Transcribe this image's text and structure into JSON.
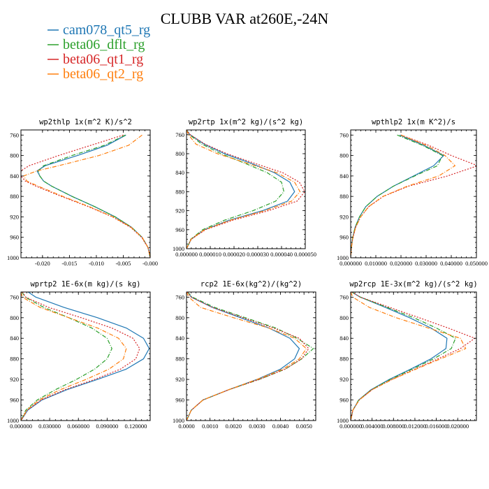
{
  "figure": {
    "title": "CLUBB VAR at260E,-24N",
    "legend": [
      {
        "name": "cam078_qt5_rg",
        "color": "#1f77b4",
        "dash": ""
      },
      {
        "name": "beta06_dflt_rg",
        "color": "#2ca02c",
        "dash": "6,2,1,2"
      },
      {
        "name": "beta06_qt1_rg",
        "color": "#d62728",
        "dash": "2,2"
      },
      {
        "name": "beta06_qt2_rg",
        "color": "#ff7f0e",
        "dash": "6,2,1,2"
      }
    ]
  },
  "chart_data": [
    {
      "type": "line",
      "title": "wp2thlp  1x(m^2 K)/s^2",
      "xlim": [
        -0.024,
        0.0
      ],
      "ylim": [
        1000,
        750
      ],
      "xticks": [
        -0.02,
        -0.015,
        -0.01,
        -0.005,
        0.0
      ],
      "xtick_labels": [
        "-0.020",
        "-0.015",
        "-0.010",
        "-0.005",
        "-0.000"
      ],
      "yticks": [
        760,
        800,
        840,
        880,
        920,
        960,
        1000
      ],
      "series": [
        {
          "name": "cam078_qt5_rg",
          "y": [
            760,
            780,
            800,
            820,
            830,
            840,
            850,
            860,
            880,
            900,
            920,
            940,
            960,
            980,
            1000
          ],
          "x": [
            -0.0045,
            -0.008,
            -0.0135,
            -0.0195,
            -0.021,
            -0.0205,
            -0.0198,
            -0.0183,
            -0.0145,
            -0.0103,
            -0.0065,
            -0.0035,
            -0.0015,
            -0.0004,
            0.0
          ]
        },
        {
          "name": "beta06_dflt_rg",
          "y": [
            760,
            780,
            800,
            820,
            830,
            840,
            850,
            860,
            880,
            900,
            920,
            940,
            960,
            980,
            1000
          ],
          "x": [
            -0.0046,
            -0.0085,
            -0.0145,
            -0.0198,
            -0.0208,
            -0.0205,
            -0.0198,
            -0.0183,
            -0.0145,
            -0.0103,
            -0.0065,
            -0.0035,
            -0.0015,
            -0.0004,
            0.0
          ]
        },
        {
          "name": "beta06_qt1_rg",
          "y": [
            760,
            780,
            800,
            820,
            830,
            840,
            850,
            860,
            880,
            900,
            920,
            940,
            960,
            980,
            1000
          ],
          "x": [
            -0.005,
            -0.011,
            -0.017,
            -0.0225,
            -0.024,
            -0.024,
            -0.0232,
            -0.0212,
            -0.0165,
            -0.0115,
            -0.007,
            -0.0037,
            -0.0016,
            -0.0004,
            0.0
          ]
        },
        {
          "name": "beta06_qt2_rg",
          "y": [
            760,
            780,
            800,
            820,
            830,
            840,
            850,
            860,
            880,
            900,
            920,
            940,
            960,
            980,
            1000
          ],
          "x": [
            -0.0015,
            -0.004,
            -0.0095,
            -0.017,
            -0.021,
            -0.0235,
            -0.0229,
            -0.0208,
            -0.0162,
            -0.0113,
            -0.0069,
            -0.0036,
            -0.0015,
            -0.0004,
            0.0
          ]
        }
      ]
    },
    {
      "type": "line",
      "title": "wp2rtp  1x(m^2 kg)/(s^2 kg)",
      "xlim": [
        0.0,
        5e-05
      ],
      "ylim": [
        1000,
        750
      ],
      "xticks": [
        0.0,
        1e-05,
        2e-05,
        3e-05,
        4e-05,
        5e-05
      ],
      "xtick_labels": [
        "0.000000",
        "0.000010",
        "0.000020",
        "0.000030",
        "0.000040",
        "0.000050"
      ],
      "yticks": [
        760,
        800,
        840,
        880,
        920,
        960,
        1000
      ],
      "series": [
        {
          "name": "cam078_qt5_rg",
          "y": [
            750,
            760,
            780,
            800,
            820,
            840,
            860,
            880,
            900,
            920,
            940,
            960,
            980,
            1000
          ],
          "x": [
            0.0,
            1.5e-06,
            7.5e-06,
            1.6e-05,
            2.7e-05,
            3.7e-05,
            4.35e-05,
            4.55e-05,
            4.25e-05,
            3.2e-05,
            1.8e-05,
            7.5e-06,
            2e-06,
            0.0
          ]
        },
        {
          "name": "beta06_dflt_rg",
          "y": [
            750,
            760,
            780,
            800,
            820,
            840,
            860,
            880,
            900,
            920,
            940,
            960,
            980,
            1000
          ],
          "x": [
            0.0,
            1.2e-06,
            6.5e-06,
            1.45e-05,
            2.45e-05,
            3.4e-05,
            4e-05,
            4.1e-05,
            3.75e-05,
            2.8e-05,
            1.6e-05,
            6.8e-06,
            1.8e-06,
            0.0
          ]
        },
        {
          "name": "beta06_qt1_rg",
          "y": [
            750,
            760,
            780,
            800,
            820,
            840,
            860,
            880,
            900,
            920,
            940,
            960,
            980,
            1000
          ],
          "x": [
            0.0,
            1.5e-06,
            7.8e-06,
            1.7e-05,
            2.85e-05,
            4.05e-05,
            4.75e-05,
            4.98e-05,
            4.65e-05,
            3.45e-05,
            1.95e-05,
            8e-06,
            2e-06,
            0.0
          ]
        },
        {
          "name": "beta06_qt2_rg",
          "y": [
            750,
            760,
            780,
            800,
            820,
            840,
            860,
            880,
            900,
            920,
            940,
            960,
            980,
            1000
          ],
          "x": [
            0.0,
            8e-07,
            4e-06,
            1.3e-05,
            2.55e-05,
            3.8e-05,
            4.55e-05,
            4.78e-05,
            4.42e-05,
            3.3e-05,
            1.85e-05,
            7.6e-06,
            1.9e-06,
            0.0
          ]
        }
      ]
    },
    {
      "type": "line",
      "title": "wpthlp2  1x(m K^2)/s",
      "xlim": [
        0.0,
        0.05
      ],
      "ylim": [
        1000,
        750
      ],
      "xticks": [
        0.0,
        0.01,
        0.02,
        0.03,
        0.04,
        0.05
      ],
      "xtick_labels": [
        "0.000000",
        "0.010000",
        "0.020000",
        "0.030000",
        "0.040000",
        "0.050000"
      ],
      "yticks": [
        760,
        800,
        840,
        880,
        920,
        960,
        1000
      ],
      "series": [
        {
          "name": "cam078_qt5_rg",
          "y": [
            760,
            780,
            800,
            820,
            840,
            860,
            880,
            900,
            920,
            940,
            960,
            980,
            1000
          ],
          "x": [
            0.0195,
            0.029,
            0.037,
            0.033,
            0.025,
            0.017,
            0.0105,
            0.006,
            0.0035,
            0.0018,
            0.0008,
            0.0003,
            0.0
          ]
        },
        {
          "name": "beta06_dflt_rg",
          "y": [
            760,
            780,
            800,
            820,
            840,
            860,
            880,
            900,
            920,
            940,
            960,
            980,
            1000
          ],
          "x": [
            0.0185,
            0.0285,
            0.0365,
            0.0345,
            0.0255,
            0.017,
            0.0105,
            0.006,
            0.0035,
            0.0018,
            0.0008,
            0.0003,
            0.0
          ]
        },
        {
          "name": "beta06_qt1_rg",
          "y": [
            760,
            780,
            800,
            820,
            840,
            860,
            880,
            900,
            920,
            940,
            960,
            980,
            1000
          ],
          "x": [
            0.02,
            0.031,
            0.04,
            0.0505,
            0.0385,
            0.023,
            0.013,
            0.0072,
            0.004,
            0.002,
            0.0009,
            0.0003,
            0.0
          ]
        },
        {
          "name": "beta06_qt2_rg",
          "y": [
            760,
            780,
            800,
            820,
            840,
            860,
            880,
            900,
            920,
            940,
            960,
            980,
            1000
          ],
          "x": [
            0.02,
            0.03,
            0.0375,
            0.0415,
            0.035,
            0.0225,
            0.0128,
            0.0071,
            0.004,
            0.002,
            0.0009,
            0.0003,
            0.0
          ]
        }
      ]
    },
    {
      "type": "line",
      "title": "wprtp2  1E-6x(m kg)/(s kg)",
      "xlim": [
        0.0,
        0.135
      ],
      "ylim": [
        1000,
        750
      ],
      "xticks": [
        0.0,
        0.03,
        0.06,
        0.09,
        0.12
      ],
      "xtick_labels": [
        "0.000000",
        "0.030000",
        "0.060000",
        "0.090000",
        "0.120000"
      ],
      "yticks": [
        760,
        800,
        840,
        880,
        920,
        960,
        1000
      ],
      "series": [
        {
          "name": "cam078_qt5_rg",
          "y": [
            750,
            760,
            780,
            800,
            820,
            840,
            860,
            880,
            900,
            920,
            940,
            960,
            980,
            1000
          ],
          "x": [
            0.0075,
            0.0155,
            0.045,
            0.08,
            0.11,
            0.128,
            0.134,
            0.128,
            0.11,
            0.08,
            0.048,
            0.022,
            0.007,
            0.0
          ]
        },
        {
          "name": "beta06_dflt_rg",
          "y": [
            750,
            760,
            780,
            800,
            820,
            840,
            860,
            880,
            900,
            920,
            940,
            960,
            980,
            1000
          ],
          "x": [
            0.001,
            0.0045,
            0.024,
            0.05,
            0.074,
            0.09,
            0.095,
            0.09,
            0.077,
            0.058,
            0.036,
            0.017,
            0.005,
            0.0
          ]
        },
        {
          "name": "beta06_qt1_rg",
          "y": [
            750,
            760,
            780,
            800,
            820,
            840,
            860,
            880,
            900,
            920,
            940,
            960,
            980,
            1000
          ],
          "x": [
            0.0015,
            0.005,
            0.029,
            0.063,
            0.095,
            0.117,
            0.124,
            0.12,
            0.104,
            0.077,
            0.046,
            0.021,
            0.0065,
            0.0
          ]
        },
        {
          "name": "beta06_qt2_rg",
          "y": [
            750,
            760,
            780,
            800,
            820,
            840,
            860,
            880,
            900,
            920,
            940,
            960,
            980,
            1000
          ],
          "x": [
            0.0,
            0.0015,
            0.02,
            0.05,
            0.08,
            0.102,
            0.11,
            0.107,
            0.092,
            0.068,
            0.041,
            0.019,
            0.006,
            0.0
          ]
        }
      ]
    },
    {
      "type": "line",
      "title": "rcp2  1E-6x(kg^2)/(kg^2)",
      "xlim": [
        0.0,
        0.0055
      ],
      "ylim": [
        1000,
        750
      ],
      "xticks": [
        0.0,
        0.001,
        0.002,
        0.003,
        0.004,
        0.005
      ],
      "xtick_labels": [
        "0.0000",
        "0.0010",
        "0.0020",
        "0.0030",
        "0.0040",
        "0.0050"
      ],
      "yticks": [
        760,
        800,
        840,
        880,
        920,
        960,
        1000
      ],
      "series": [
        {
          "name": "cam078_qt5_rg",
          "y": [
            750,
            760,
            780,
            800,
            820,
            840,
            860,
            880,
            900,
            920,
            940,
            960,
            980,
            1000
          ],
          "x": [
            5e-05,
            0.0002,
            0.0011,
            0.0023,
            0.0035,
            0.0044,
            0.0048,
            0.0046,
            0.004,
            0.003,
            0.0018,
            0.0007,
            0.0002,
            0.0
          ]
        },
        {
          "name": "beta06_dflt_rg",
          "y": [
            750,
            760,
            780,
            800,
            820,
            840,
            860,
            880,
            900,
            920,
            940,
            960,
            980,
            1000
          ],
          "x": [
            4e-05,
            0.00025,
            0.0012,
            0.0025,
            0.0038,
            0.0047,
            0.0054,
            0.0049,
            0.0042,
            0.0031,
            0.0018,
            0.0007,
            0.0002,
            0.0
          ]
        },
        {
          "name": "beta06_qt1_rg",
          "y": [
            750,
            760,
            780,
            800,
            820,
            840,
            860,
            880,
            900,
            920,
            940,
            960,
            980,
            1000
          ],
          "x": [
            4e-05,
            0.0002,
            0.0011,
            0.0024,
            0.0037,
            0.0048,
            0.0052,
            0.0049,
            0.0042,
            0.0031,
            0.0018,
            0.0007,
            0.0002,
            0.0
          ]
        },
        {
          "name": "beta06_qt2_rg",
          "y": [
            750,
            760,
            780,
            800,
            820,
            840,
            860,
            880,
            900,
            920,
            940,
            960,
            980,
            1000
          ],
          "x": [
            0.0,
            0.0001,
            0.0006,
            0.002,
            0.0035,
            0.0046,
            0.0051,
            0.0048,
            0.0041,
            0.003,
            0.0018,
            0.0007,
            0.0002,
            0.0
          ]
        }
      ]
    },
    {
      "type": "line",
      "title": "wp2rcp  1E-3x(m^2 kg)/(s^2 kg)",
      "xlim": [
        0.0,
        0.0235
      ],
      "ylim": [
        1000,
        750
      ],
      "xticks": [
        0.0,
        0.004,
        0.008,
        0.012,
        0.016,
        0.02
      ],
      "xtick_labels": [
        "0.000000",
        "0.004000",
        "0.008000",
        "0.012000",
        "0.016000",
        "0.020000"
      ],
      "yticks": [
        760,
        800,
        840,
        880,
        920,
        960,
        1000
      ],
      "series": [
        {
          "name": "cam078_qt5_rg",
          "y": [
            750,
            760,
            780,
            800,
            820,
            840,
            860,
            880,
            900,
            920,
            940,
            960,
            980,
            1000
          ],
          "x": [
            0.0002,
            0.0018,
            0.0065,
            0.011,
            0.015,
            0.018,
            0.0178,
            0.015,
            0.0112,
            0.0072,
            0.0038,
            0.0015,
            0.0004,
            0.0
          ]
        },
        {
          "name": "beta06_dflt_rg",
          "y": [
            750,
            760,
            780,
            800,
            820,
            840,
            860,
            880,
            900,
            920,
            940,
            960,
            980,
            1000
          ],
          "x": [
            0.0002,
            0.0018,
            0.0068,
            0.0118,
            0.016,
            0.0196,
            0.0188,
            0.0155,
            0.0115,
            0.0074,
            0.0039,
            0.0015,
            0.0004,
            0.0
          ]
        },
        {
          "name": "beta06_qt1_rg",
          "y": [
            750,
            760,
            780,
            800,
            820,
            840,
            860,
            880,
            900,
            920,
            940,
            960,
            980,
            1000
          ],
          "x": [
            0.0002,
            0.0018,
            0.0073,
            0.0128,
            0.0182,
            0.0232,
            0.0205,
            0.0163,
            0.012,
            0.0077,
            0.004,
            0.0016,
            0.0004,
            0.0
          ]
        },
        {
          "name": "beta06_qt2_rg",
          "y": [
            750,
            760,
            780,
            800,
            820,
            840,
            860,
            880,
            900,
            920,
            940,
            960,
            980,
            1000
          ],
          "x": [
            0.0,
            0.0004,
            0.0035,
            0.0085,
            0.0145,
            0.0205,
            0.0215,
            0.0168,
            0.0122,
            0.0078,
            0.004,
            0.0016,
            0.0004,
            0.0
          ]
        }
      ]
    }
  ]
}
